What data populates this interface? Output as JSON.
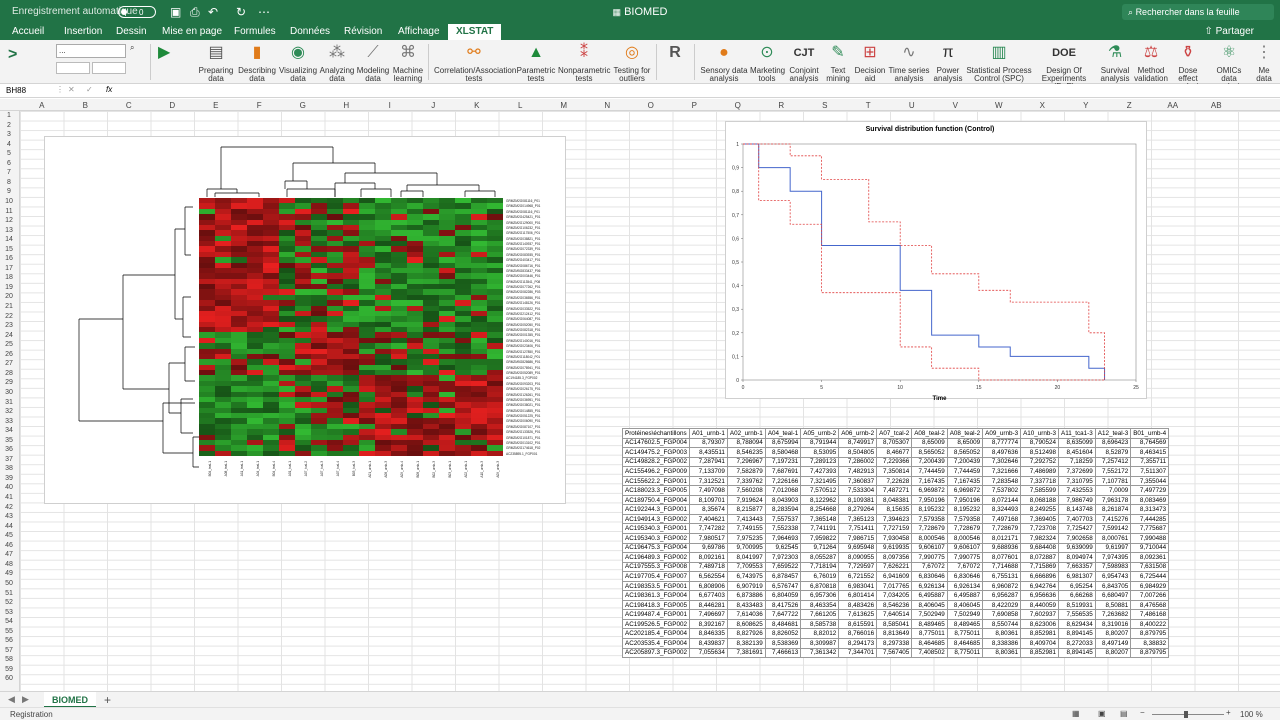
{
  "app": {
    "autosave_label": "Enregistrement automatique",
    "autosave_state": "0",
    "title": "BIOMED",
    "search_placeholder": "Rechercher dans la feuille"
  },
  "tabs": [
    "Accueil",
    "Insertion",
    "Dessin",
    "Mise en page",
    "Formules",
    "Données",
    "Révision",
    "Affichage",
    "XLSTAT"
  ],
  "active_tab": "XLSTAT",
  "share_label": "Partager",
  "ribbon": {
    "name_field": "...",
    "buttons": [
      "Preparing data",
      "Describing data",
      "Visualizing data",
      "Analyzing data",
      "Modeling data",
      "Machine learning",
      "Correlation/Association tests",
      "Parametric tests",
      "Nonparametric tests",
      "Testing for outliers",
      "Sensory data analysis",
      "Marketing tools",
      "Conjoint analysis",
      "Text mining",
      "Decision aid",
      "Time series analysis",
      "Power analysis",
      "Statistical Process Control (SPC)",
      "Design Of Experiments (DoE)",
      "Survival analysis",
      "Method validation",
      "Dose effect analysis",
      "OMICs data analysis",
      "Me data"
    ]
  },
  "formula": {
    "cellref": "BH88",
    "fx": "fx"
  },
  "columns": [
    "A",
    "B",
    "C",
    "D",
    "E",
    "F",
    "G",
    "H",
    "I",
    "J",
    "K",
    "L",
    "M",
    "N",
    "O",
    "P",
    "Q",
    "R",
    "S",
    "T",
    "U",
    "V",
    "W",
    "X",
    "Y",
    "Z",
    "AA",
    "AB"
  ],
  "colors": {
    "green": "#217346",
    "red": "#e8201f",
    "heat_green": "#3db535",
    "curve": "#4466cc",
    "ci": "#e04040"
  },
  "heatmap": {
    "row_labels": [
      "GRMZM2G081116_P01",
      "GRMZM2G014968_P01",
      "GRMZM2G081116_P01",
      "GRMZM2G425421_P01",
      "GRMZM2G129000_P01",
      "GRMZM2G106232_P01",
      "GRMZM2G117506_P01",
      "GRMZM2G038821_P01",
      "GRMZM2G140937_P01",
      "GRMZM2G072339_P01",
      "GRMZM2G083935_P01",
      "GRMZM2G403417_P01",
      "GRMZM2G086716_P01",
      "GRMZM5G833437_P06",
      "GRMZM2G003446_P01",
      "GRMZM2G113541_P08",
      "GRMZM2G077262_P01",
      "GRMZM2G082286_P03",
      "GRMZM2G036556_P01",
      "GRMZM2G148126_P01",
      "GRMZM2G033522_P01",
      "GRMZM2G212412_P01",
      "GRMZM2G064087_P01",
      "GRMZM2G052050_P01",
      "GRMZM2G082318_P01",
      "GRMZM2G001355_P01",
      "GRMZM2G140016_P01",
      "GRMZM2G023406_P01",
      "GRMZM2G127850_P01",
      "GRMZM2G118042_P01",
      "GRMZM5G828686_P01",
      "GRMZM2G078941_P01",
      "GRMZM2G052089_P01",
      "AC194185.3_FGP002",
      "GRMZM2G093203_P01",
      "GRMZM2G026175_P01",
      "GRMZM2G126261_P01",
      "GRMZM2G036951_P01",
      "GRMZM2G038021_P01",
      "GRMZM2G014855_P01",
      "GRMZM2G051225_P01",
      "GRMZM2G006090_P01",
      "GRMZM2G087107_P01",
      "GRMZM2G133526_P01",
      "GRMZM2G101871_P01",
      "GRMZM2G013102_P01",
      "GRMZM2G174618_P02",
      "AC235895.1_FGP001"
    ],
    "col_labels": [
      "B04_teal-1",
      "A08_teal-1",
      "A11_teal-1",
      "A04_teal-1",
      "B04_teal-4",
      "A01_tcal-1",
      "A07_tcal-2",
      "A07_tcal-3",
      "A07_tcal-4",
      "B03_tcal-3",
      "A01_urnb-1",
      "A08_urnb-3",
      "A09_urnb-4",
      "B08_urnb-1",
      "B02_urnb-3",
      "B03_urnb-1",
      "A02_urnb-1",
      "A10_urnb-3",
      "A09_urnb-3"
    ]
  },
  "chart_data": {
    "type": "line",
    "title": "Survival distribution function (Control)",
    "xlabel": "Time",
    "ylabel": "",
    "xlim": [
      0,
      25
    ],
    "ylim": [
      0,
      1
    ],
    "xticks": [
      0,
      5,
      10,
      15,
      20,
      25
    ],
    "yticks": [
      0,
      0.1,
      0.2,
      0.3,
      0.4,
      0.5,
      0.6,
      0.7,
      0.8,
      0.9,
      1
    ],
    "ytick_labels": [
      "0",
      "0,1",
      "0,2",
      "0,3",
      "0,4",
      "0,5",
      "0,6",
      "0,7",
      "0,8",
      "0,9",
      "1"
    ],
    "series": [
      {
        "x": [
          0,
          1,
          1,
          3,
          3,
          5,
          5,
          8,
          8,
          10,
          10,
          12,
          12,
          15,
          15,
          17,
          17,
          22,
          22,
          23,
          23
        ],
        "y": [
          1,
          1,
          0.9,
          0.9,
          0.8,
          0.8,
          0.57,
          0.57,
          0.57,
          0.57,
          0.38,
          0.38,
          0.19,
          0.19,
          0.14,
          0.14,
          0.1,
          0.1,
          0.05,
          0.05,
          0
        ]
      },
      {
        "x": [
          0,
          1,
          1,
          3,
          3,
          5,
          5,
          8,
          8,
          10,
          10,
          12,
          12,
          15,
          15,
          17,
          17,
          22,
          22,
          23,
          23
        ],
        "y": [
          1,
          1,
          1,
          1,
          0.95,
          0.95,
          0.85,
          0.85,
          0.67,
          0.67,
          0.57,
          0.57,
          0.45,
          0.45,
          0.38,
          0.38,
          0.33,
          0.33,
          0.2,
          0.2,
          0
        ]
      },
      {
        "x": [
          0,
          1,
          1,
          3,
          3,
          5,
          5,
          8,
          8,
          10,
          10,
          12,
          12,
          15,
          15,
          17,
          17,
          22,
          22,
          23,
          23
        ],
        "y": [
          1,
          1,
          0.76,
          0.76,
          0.66,
          0.66,
          0.37,
          0.37,
          0.37,
          0.37,
          0.14,
          0.14,
          0.05,
          0.05,
          0,
          0,
          0,
          0,
          0,
          0,
          0
        ]
      }
    ]
  },
  "table": {
    "headers": [
      "Protéines\\échantillons",
      "A01_urnb-1",
      "A02_urnb-1",
      "A04_teal-1",
      "A05_urnb-2",
      "A06_urnb-2",
      "A07_tcal-2",
      "A08_teal-2",
      "A08_teal-2",
      "A09_urnb-3",
      "A10_urnb-3",
      "A11_tca1-3",
      "A12_teal-3",
      "B01_urnb-4"
    ],
    "rows": [
      [
        "AC147602.5_FGP004",
        "8,79307",
        "8,788094",
        "8,675994",
        "8,791944",
        "8,749917",
        "8,705307",
        "8,65009",
        "8,65009",
        "8,777774",
        "8,790524",
        "8,635099",
        "8,696423",
        "8,764569"
      ],
      [
        "AC149475.2_FGP003",
        "8,435511",
        "8,546235",
        "8,580468",
        "8,53095",
        "8,504805",
        "8,46677",
        "8,565052",
        "8,565052",
        "8,497636",
        "8,512498",
        "8,451604",
        "8,52879",
        "8,463415"
      ],
      [
        "AC149828.2_FGP002",
        "7,287941",
        "7,296967",
        "7,197231",
        "7,289123",
        "7,286002",
        "7,229366",
        "7,200439",
        "7,200439",
        "7,302646",
        "7,292752",
        "7,18259",
        "7,257412",
        "7,355711"
      ],
      [
        "AC155496.2_FGP009",
        "7,133709",
        "7,582879",
        "7,687691",
        "7,427393",
        "7,482913",
        "7,350814",
        "7,744459",
        "7,744459",
        "7,321666",
        "7,486989",
        "7,372699",
        "7,552172",
        "7,511307"
      ],
      [
        "AC155622.2_FGP001",
        "7,312521",
        "7,339762",
        "7,226166",
        "7,321495",
        "7,360837",
        "7,22628",
        "7,167435",
        "7,167435",
        "7,283548",
        "7,337718",
        "7,310795",
        "7,107781",
        "7,355044"
      ],
      [
        "AC188023.3_FGP005",
        "7,497098",
        "7,560208",
        "7,012068",
        "7,570512",
        "7,533304",
        "7,487271",
        "6,969872",
        "6,969872",
        "7,537802",
        "7,585599",
        "7,432553",
        "7,0009",
        "7,497729"
      ],
      [
        "AC189750.4_FGP004",
        "8,109701",
        "7,919624",
        "8,043903",
        "8,122962",
        "8,109381",
        "8,048381",
        "7,950196",
        "7,950196",
        "8,072144",
        "8,068188",
        "7,986749",
        "7,963178",
        "8,083469"
      ],
      [
        "AC192244.3_FGP001",
        "8,35674",
        "8,215877",
        "8,283594",
        "8,254668",
        "8,279264",
        "8,15635",
        "8,195232",
        "8,195232",
        "8,324493",
        "8,249255",
        "8,143748",
        "8,261874",
        "8,313473"
      ],
      [
        "AC194914.3_FGP002",
        "7,404621",
        "7,413443",
        "7,557537",
        "7,365148",
        "7,365123",
        "7,394623",
        "7,579358",
        "7,579358",
        "7,497168",
        "7,369405",
        "7,407703",
        "7,415276",
        "7,444285"
      ],
      [
        "AC195340.3_FGP001",
        "7,747282",
        "7,749155",
        "7,552338",
        "7,741191",
        "7,751411",
        "7,727159",
        "7,728679",
        "7,728679",
        "7,728679",
        "7,723708",
        "7,725427",
        "7,599142",
        "7,775687"
      ],
      [
        "AC195340.3_FGP002",
        "7,980517",
        "7,975235",
        "7,964693",
        "7,959822",
        "7,986715",
        "7,930458",
        "8,000546",
        "8,000546",
        "8,012171",
        "7,982324",
        "7,902658",
        "8,000761",
        "7,990488"
      ],
      [
        "AC196475.3_FGP004",
        "9,69786",
        "9,700995",
        "9,62545",
        "9,71264",
        "9,695948",
        "9,619935",
        "9,606107",
        "9,606107",
        "9,688936",
        "9,684408",
        "9,639099",
        "9,61997",
        "9,710044"
      ],
      [
        "AC196489.3_FGP002",
        "8,092161",
        "8,041997",
        "7,972303",
        "8,055287",
        "8,090955",
        "8,097356",
        "7,990775",
        "7,990775",
        "8,077601",
        "8,072887",
        "8,094974",
        "7,974395",
        "8,092361"
      ],
      [
        "AC197555.3_FGP008",
        "7,489718",
        "7,709553",
        "7,659522",
        "7,718194",
        "7,729597",
        "7,626221",
        "7,67072",
        "7,67072",
        "7,714688",
        "7,715869",
        "7,663357",
        "7,598983",
        "7,631508"
      ],
      [
        "AC197705.4_FGP007",
        "6,562554",
        "6,743975",
        "6,878457",
        "6,76019",
        "6,721552",
        "6,941609",
        "6,830646",
        "6,830646",
        "6,755131",
        "6,666896",
        "6,981307",
        "6,954743",
        "6,725444"
      ],
      [
        "AC198353.5_FGP001",
        "6,808906",
        "6,907919",
        "6,576747",
        "6,870818",
        "6,983041",
        "7,017765",
        "6,926134",
        "6,926134",
        "6,960872",
        "6,942764",
        "6,95254",
        "6,843705",
        "6,984929"
      ],
      [
        "AC198361.3_FGP004",
        "6,677403",
        "6,873886",
        "6,804059",
        "6,957306",
        "6,801414",
        "7,034205",
        "6,495887",
        "6,495887",
        "6,956287",
        "6,956636",
        "6,66268",
        "6,680497",
        "7,007266"
      ],
      [
        "AC198418.3_FGP005",
        "8,446281",
        "8,433483",
        "8,417526",
        "8,463354",
        "8,483426",
        "8,546236",
        "8,406045",
        "8,406045",
        "8,422029",
        "8,440059",
        "8,519931",
        "8,50881",
        "8,476568"
      ],
      [
        "AC199487.4_FGP001",
        "7,496697",
        "7,614036",
        "7,647722",
        "7,661205",
        "7,613625",
        "7,640514",
        "7,502949",
        "7,502949",
        "7,690858",
        "7,602937",
        "7,556535",
        "7,263682",
        "7,486168"
      ],
      [
        "AC199526.5_FGP002",
        "8,392167",
        "8,608625",
        "8,484681",
        "8,585738",
        "8,615591",
        "8,585041",
        "8,489465",
        "8,489465",
        "8,550744",
        "8,623006",
        "8,629434",
        "8,319016",
        "8,400222"
      ],
      [
        "AC202185.4_FGP004",
        "8,846335",
        "8,827926",
        "8,826052",
        "8,82012",
        "8,766016",
        "8,813649",
        "8,775011",
        "8,775011",
        "8,80361",
        "8,852981",
        "8,894145",
        "8,80207",
        "8,879795"
      ],
      [
        "AC203535.4_FGP004",
        "8,439837",
        "8,382139",
        "8,538369",
        "8,309987",
        "8,294173",
        "8,297338",
        "8,464685",
        "8,464685",
        "8,338386",
        "8,409704",
        "8,272033",
        "8,497149",
        "8,38832"
      ],
      [
        "AC205897.3_FGP002",
        "7,055634",
        "7,381691",
        "7,466613",
        "7,361342",
        "7,344701",
        "7,567405",
        "7,408502",
        "8,775011",
        "8,80361",
        "8,852981",
        "8,894145",
        "8,80207",
        "8,879795"
      ]
    ]
  },
  "sheet": {
    "tab": "BIOMED",
    "add": "+"
  },
  "status": {
    "left": "Registration",
    "zoom": "100 %"
  }
}
